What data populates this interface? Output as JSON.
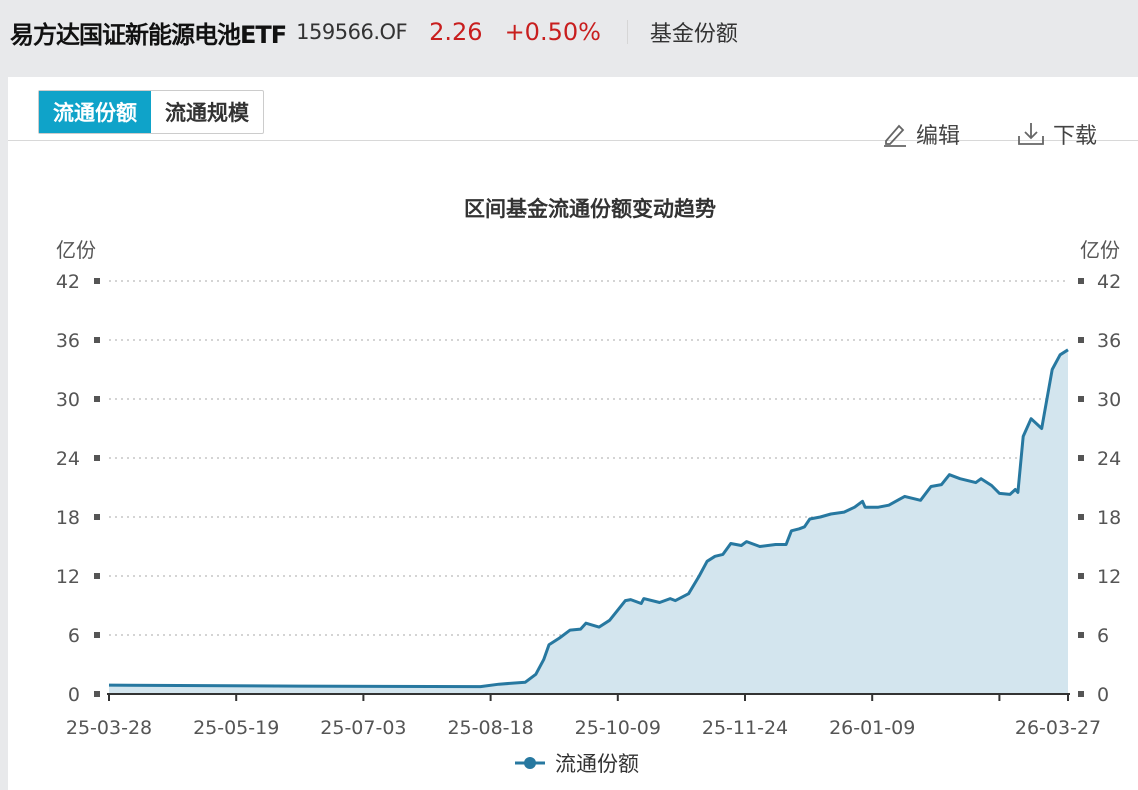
{
  "header": {
    "fund_name": "易方达国证新能源电池ETF",
    "code": "159566.OF",
    "price": "2.26",
    "change": "+0.50%",
    "section": "基金份额"
  },
  "tabs": [
    {
      "label": "流通份额",
      "active": true
    },
    {
      "label": "流通规模",
      "active": false
    }
  ],
  "toolbar": {
    "edit_label": "编辑",
    "download_label": "下载",
    "edit_icon": "pencil-icon",
    "download_icon": "download-icon"
  },
  "colors": {
    "accent": "#0fa3c9",
    "line": "#2778a0",
    "area": "#d3e5ee",
    "up": "#c81e1e"
  },
  "chart_data": {
    "type": "area",
    "title": "区间基金流通份额变动趋势",
    "ylabel_left": "亿份",
    "ylabel_right": "亿份",
    "ylim": [
      0,
      42
    ],
    "yticks": [
      "0",
      "6",
      "12",
      "18",
      "24",
      "30",
      "36",
      "42"
    ],
    "xlim": [
      "2025-03-28",
      "2026-03-27"
    ],
    "xticks": [
      "25-03-28",
      "25-05-19",
      "25-07-03",
      "25-08-18",
      "25-10-09",
      "25-11-24",
      "26-01-09",
      "",
      "26-03-27"
    ],
    "grid": true,
    "legend_position": "bottom",
    "series": [
      {
        "name": "流通份额",
        "points": [
          [
            "2025-03-28",
            0.9
          ],
          [
            "2025-06-08",
            0.8
          ],
          [
            "2025-08-16",
            0.75
          ],
          [
            "2025-08-23",
            1.0
          ],
          [
            "2025-09-02",
            1.2
          ],
          [
            "2025-09-06",
            2.0
          ],
          [
            "2025-09-09",
            3.5
          ],
          [
            "2025-09-11",
            5.0
          ],
          [
            "2025-09-15",
            5.7
          ],
          [
            "2025-09-19",
            6.5
          ],
          [
            "2025-09-23",
            6.6
          ],
          [
            "2025-09-25",
            7.2
          ],
          [
            "2025-09-30",
            6.8
          ],
          [
            "2025-10-04",
            7.5
          ],
          [
            "2025-10-10",
            9.5
          ],
          [
            "2025-10-12",
            9.6
          ],
          [
            "2025-10-16",
            9.2
          ],
          [
            "2025-10-17",
            9.7
          ],
          [
            "2025-10-23",
            9.3
          ],
          [
            "2025-10-27",
            9.7
          ],
          [
            "2025-10-29",
            9.5
          ],
          [
            "2025-11-03",
            10.2
          ],
          [
            "2025-11-07",
            12.0
          ],
          [
            "2025-11-10",
            13.5
          ],
          [
            "2025-11-13",
            14.0
          ],
          [
            "2025-11-16",
            14.2
          ],
          [
            "2025-11-19",
            15.3
          ],
          [
            "2025-11-23",
            15.1
          ],
          [
            "2025-11-25",
            15.5
          ],
          [
            "2025-11-30",
            15.0
          ],
          [
            "2025-12-06",
            15.2
          ],
          [
            "2025-12-10",
            15.2
          ],
          [
            "2025-12-12",
            16.6
          ],
          [
            "2025-12-15",
            16.8
          ],
          [
            "2025-12-17",
            17.0
          ],
          [
            "2025-12-19",
            17.8
          ],
          [
            "2025-12-23",
            18.0
          ],
          [
            "2025-12-27",
            18.3
          ],
          [
            "2026-01-01",
            18.5
          ],
          [
            "2026-01-05",
            19.0
          ],
          [
            "2026-01-08",
            19.6
          ],
          [
            "2026-01-09",
            19.0
          ],
          [
            "2026-01-14",
            19.0
          ],
          [
            "2026-01-18",
            19.2
          ],
          [
            "2026-01-22",
            19.8
          ],
          [
            "2026-01-24",
            20.1
          ],
          [
            "2026-01-30",
            19.7
          ],
          [
            "2026-02-03",
            21.1
          ],
          [
            "2026-02-07",
            21.3
          ],
          [
            "2026-02-10",
            22.3
          ],
          [
            "2026-02-14",
            21.9
          ],
          [
            "2026-02-20",
            21.5
          ],
          [
            "2026-02-22",
            21.9
          ],
          [
            "2026-02-26",
            21.2
          ],
          [
            "2026-03-01",
            20.4
          ],
          [
            "2026-03-05",
            20.3
          ],
          [
            "2026-03-07",
            20.8
          ],
          [
            "2026-03-08",
            20.5
          ],
          [
            "2026-03-10",
            26.2
          ],
          [
            "2026-03-13",
            28.0
          ],
          [
            "2026-03-17",
            27.0
          ],
          [
            "2026-03-18",
            28.5
          ],
          [
            "2026-03-21",
            33.0
          ],
          [
            "2026-03-24",
            34.5
          ],
          [
            "2026-03-27",
            35.0
          ]
        ]
      }
    ]
  }
}
